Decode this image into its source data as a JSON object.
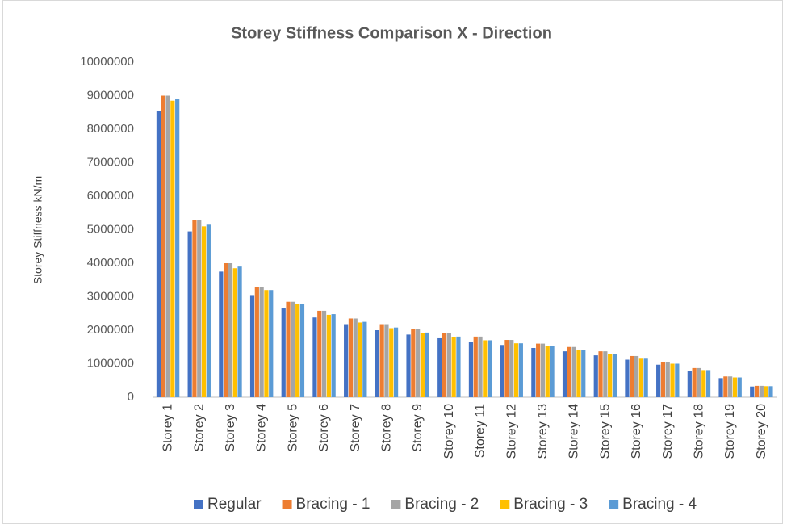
{
  "chart_data": {
    "type": "bar",
    "title": "Storey Stiffness Comparison  X - Direction",
    "y_label": "Storey Stiffness kN/m",
    "categories": [
      "Storey 1",
      "Storey 2",
      "Storey 3",
      "Storey 4",
      "Storey 5",
      "Storey 6",
      "Storey 7",
      "Storey 8",
      "Storey 9",
      "Storey 10",
      "Storey 11",
      "Storey 12",
      "Storey 13",
      "Storey 14",
      "Storey 15",
      "Storey 16",
      "Storey 17",
      "Storey 18",
      "Storey 19",
      "Storey 20"
    ],
    "series": [
      {
        "name": "Regular",
        "color": "#4472c4",
        "values": [
          8550000,
          4950000,
          3750000,
          3050000,
          2650000,
          2380000,
          2180000,
          2000000,
          1870000,
          1760000,
          1650000,
          1560000,
          1470000,
          1370000,
          1250000,
          1120000,
          970000,
          790000,
          570000,
          320000
        ]
      },
      {
        "name": "Bracing - 1",
        "color": "#ed7d31",
        "values": [
          9000000,
          5300000,
          4000000,
          3300000,
          2850000,
          2580000,
          2350000,
          2180000,
          2040000,
          1920000,
          1810000,
          1710000,
          1600000,
          1500000,
          1370000,
          1230000,
          1060000,
          870000,
          620000,
          340000
        ]
      },
      {
        "name": "Bracing - 2",
        "color": "#a5a5a5",
        "values": [
          9000000,
          5300000,
          4000000,
          3300000,
          2850000,
          2580000,
          2350000,
          2180000,
          2040000,
          1920000,
          1810000,
          1710000,
          1600000,
          1500000,
          1370000,
          1230000,
          1060000,
          870000,
          620000,
          340000
        ]
      },
      {
        "name": "Bracing - 3",
        "color": "#ffc000",
        "values": [
          8850000,
          5100000,
          3850000,
          3200000,
          2780000,
          2460000,
          2230000,
          2060000,
          1920000,
          1800000,
          1700000,
          1610000,
          1520000,
          1410000,
          1290000,
          1150000,
          1000000,
          810000,
          590000,
          330000
        ]
      },
      {
        "name": "Bracing - 4",
        "color": "#5b9bd5",
        "values": [
          8900000,
          5150000,
          3900000,
          3200000,
          2780000,
          2480000,
          2250000,
          2080000,
          1930000,
          1810000,
          1700000,
          1610000,
          1520000,
          1410000,
          1290000,
          1150000,
          1000000,
          810000,
          590000,
          330000
        ]
      }
    ],
    "ylim": [
      0,
      10000000
    ],
    "yticks": [
      0,
      1000000,
      2000000,
      3000000,
      4000000,
      5000000,
      6000000,
      7000000,
      8000000,
      9000000,
      10000000
    ],
    "grid": false,
    "legend": "bottom"
  }
}
